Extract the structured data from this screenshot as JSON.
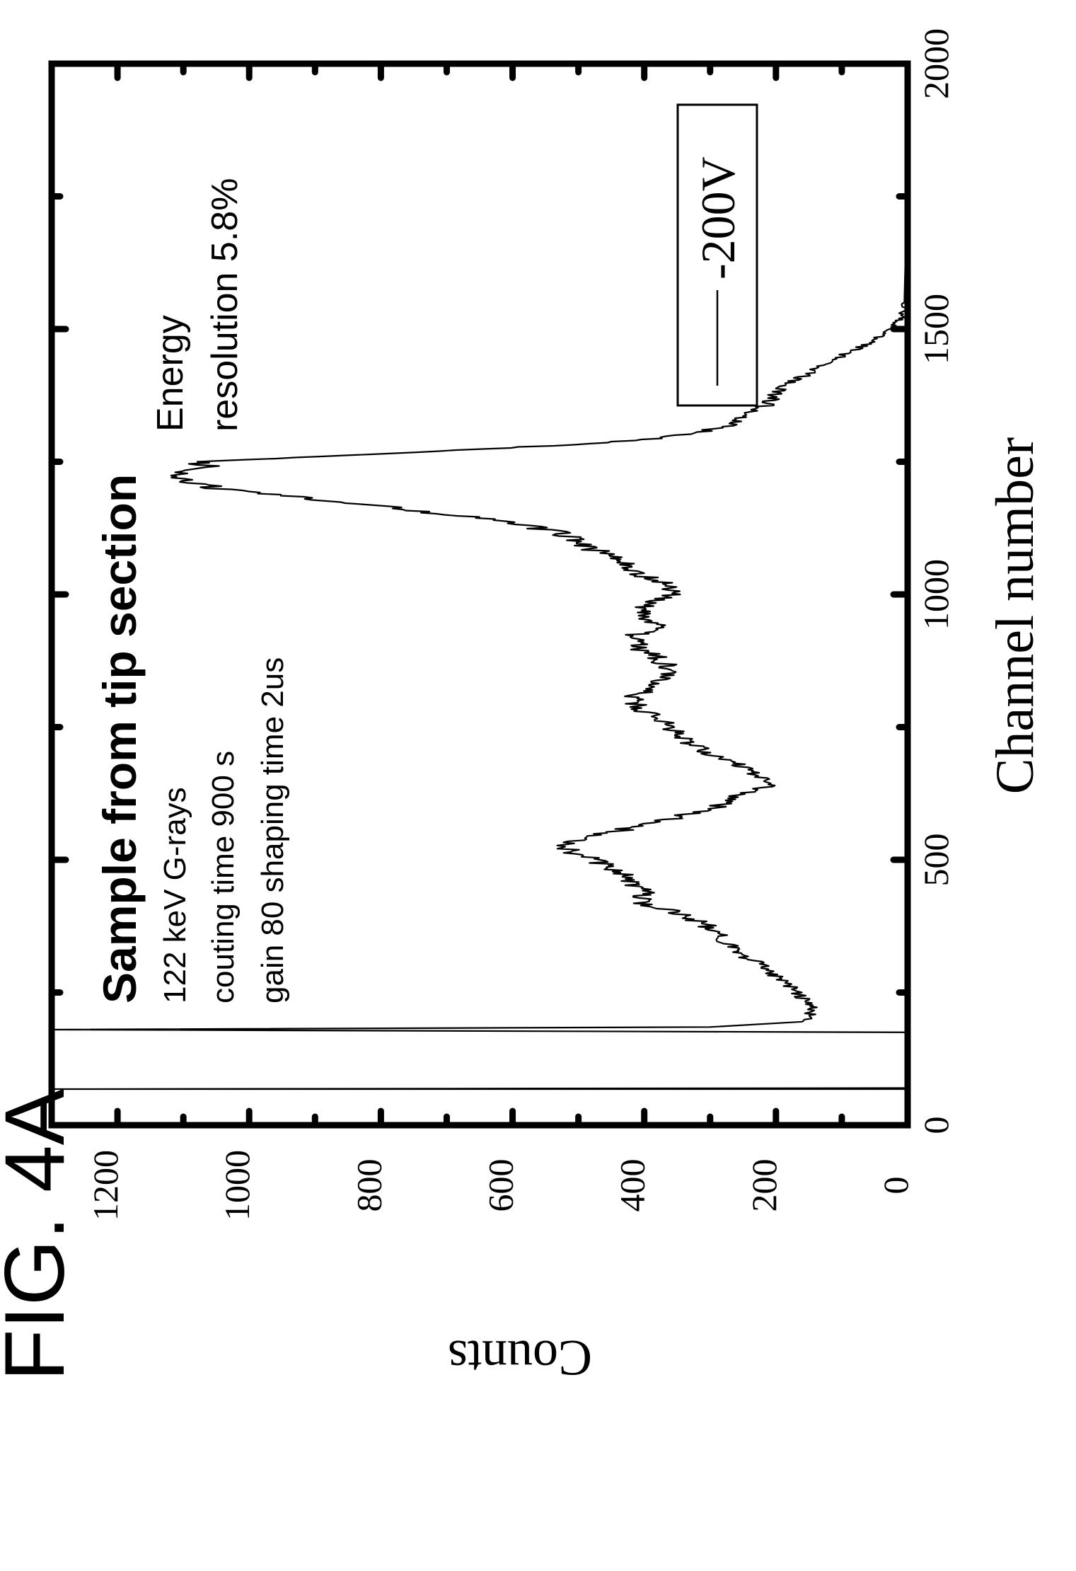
{
  "figure_label": "FIG. 4A",
  "chart_data": {
    "type": "line",
    "xlabel": "Channel number",
    "ylabel": "Counts",
    "xlim": [
      0,
      2000
    ],
    "ylim": [
      0,
      1300
    ],
    "x_ticks": [
      0,
      500,
      1000,
      1500,
      2000
    ],
    "y_ticks": [
      0,
      200,
      400,
      600,
      800,
      1000,
      1200
    ],
    "grid": false,
    "legend": {
      "position": "top-right",
      "entries": [
        "-200V"
      ]
    },
    "annotations": {
      "title": "Sample from tip section",
      "line1": "122 keV G-rays",
      "line2": "couting time 900 s",
      "line3": "gain 80 shaping time 2us",
      "resolution_line1": "Energy",
      "resolution_line2": "resolution 5.8%"
    },
    "series": [
      {
        "name": "-200V",
        "x": [
          68,
          68,
          70,
          175,
          180,
          185,
          195,
          205,
          220,
          240,
          260,
          280,
          300,
          320,
          340,
          360,
          380,
          400,
          420,
          440,
          460,
          480,
          500,
          515,
          525,
          535,
          545,
          560,
          580,
          600,
          620,
          640,
          660,
          680,
          700,
          720,
          740,
          760,
          780,
          800,
          820,
          840,
          860,
          880,
          900,
          920,
          940,
          960,
          980,
          1000,
          1020,
          1040,
          1060,
          1080,
          1100,
          1120,
          1140,
          1160,
          1180,
          1200,
          1220,
          1230,
          1240,
          1250,
          1260,
          1270,
          1280,
          1290,
          1300,
          1310,
          1320,
          1340,
          1360,
          1380,
          1400,
          1420,
          1440,
          1460,
          1480,
          1500,
          1520,
          1550,
          1600,
          1650,
          1700,
          1800,
          1900,
          2000
        ],
        "y": [
          0,
          1300,
          0,
          0,
          1300,
          300,
          160,
          150,
          145,
          160,
          175,
          200,
          220,
          250,
          270,
          290,
          310,
          350,
          410,
          400,
          430,
          440,
          480,
          510,
          520,
          500,
          470,
          420,
          350,
          290,
          260,
          210,
          230,
          260,
          300,
          330,
          350,
          370,
          400,
          420,
          400,
          380,
          360,
          380,
          410,
          420,
          380,
          400,
          400,
          360,
          370,
          410,
          430,
          470,
          500,
          540,
          630,
          760,
          900,
          1050,
          1110,
          1100,
          1060,
          1080,
          900,
          720,
          550,
          420,
          340,
          300,
          270,
          240,
          210,
          200,
          180,
          145,
          120,
          80,
          50,
          25,
          10,
          5,
          4,
          3,
          3,
          2,
          2,
          2
        ],
        "color": "#000000"
      }
    ]
  }
}
